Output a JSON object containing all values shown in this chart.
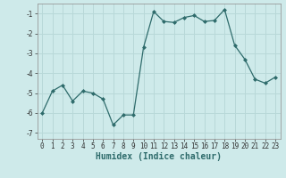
{
  "x": [
    0,
    1,
    2,
    3,
    4,
    5,
    6,
    7,
    8,
    9,
    10,
    11,
    12,
    13,
    14,
    15,
    16,
    17,
    18,
    19,
    20,
    21,
    22,
    23
  ],
  "y": [
    -6.0,
    -4.9,
    -4.6,
    -5.4,
    -4.9,
    -5.0,
    -5.3,
    -6.6,
    -6.1,
    -6.1,
    -2.7,
    -0.9,
    -1.4,
    -1.45,
    -1.2,
    -1.1,
    -1.4,
    -1.35,
    -0.8,
    -2.6,
    -3.3,
    -4.3,
    -4.5,
    -4.2
  ],
  "line_color": "#2e6b6b",
  "marker": "D",
  "marker_size": 2.0,
  "bg_color": "#ceeaea",
  "grid_color": "#b8d8d8",
  "xlabel": "Humidex (Indice chaleur)",
  "xlim": [
    -0.5,
    23.5
  ],
  "ylim": [
    -7.3,
    -0.5
  ],
  "yticks": [
    -7,
    -6,
    -5,
    -4,
    -3,
    -2,
    -1
  ],
  "xticks": [
    0,
    1,
    2,
    3,
    4,
    5,
    6,
    7,
    8,
    9,
    10,
    11,
    12,
    13,
    14,
    15,
    16,
    17,
    18,
    19,
    20,
    21,
    22,
    23
  ],
  "xtick_labels": [
    "0",
    "1",
    "2",
    "3",
    "4",
    "5",
    "6",
    "7",
    "8",
    "9",
    "10",
    "11",
    "12",
    "13",
    "14",
    "15",
    "16",
    "17",
    "18",
    "19",
    "20",
    "21",
    "22",
    "23"
  ],
  "axis_fontsize": 5.5,
  "label_fontsize": 7.0
}
